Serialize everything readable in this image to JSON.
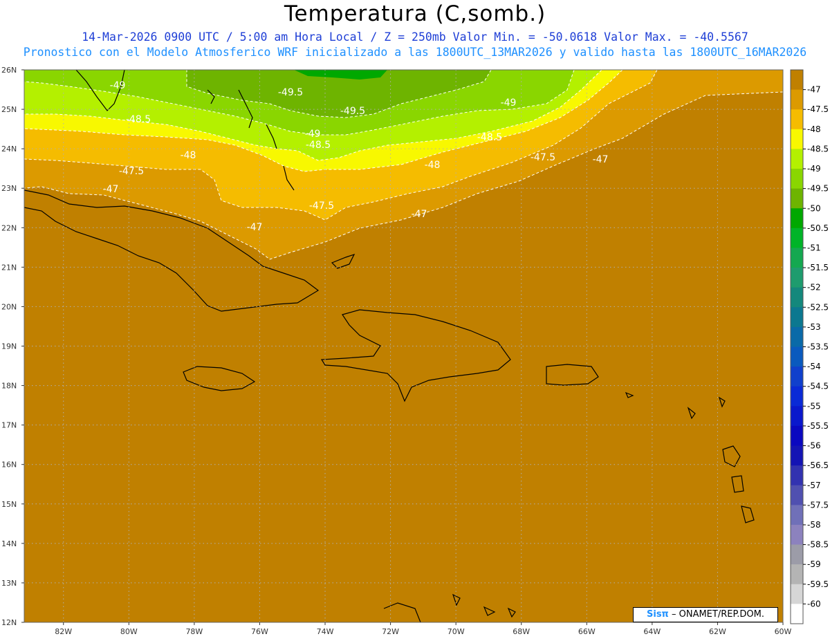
{
  "header": {
    "title": "Temperatura (C,somb.)",
    "line1": "14-Mar-2026  0900 UTC / 5:00 am Hora Local / Z = 250mb  Valor Min. = -50.0618  Valor Max. = -40.5567",
    "line2": "Pronostico con el Modelo Atmosferico WRF inicializado a las 1800UTC_13MAR2026 y valido hasta las  1800UTC_16MAR2026"
  },
  "map": {
    "lat_labels": [
      "26N",
      "25N",
      "24N",
      "23N",
      "22N",
      "21N",
      "20N",
      "19N",
      "18N",
      "17N",
      "16N",
      "15N",
      "14N",
      "13N",
      "12N"
    ],
    "lon_labels": [
      "82W",
      "80W",
      "78W",
      "76W",
      "74W",
      "72W",
      "70W",
      "68W",
      "66W",
      "64W",
      "62W",
      "60W"
    ],
    "lat_range": [
      12,
      26
    ],
    "lon_range": [
      -83.2,
      -60
    ],
    "contour_labels": [
      "-49",
      "-49.5",
      "-49.5",
      "-49",
      "-48.5",
      "-49",
      "-48.5",
      "-48.5",
      "-48",
      "-48",
      "-47.5",
      "-47.5",
      "-47.5",
      "-47",
      "-47",
      "-47",
      "-47"
    ]
  },
  "colorbar": {
    "labels": [
      "-47",
      "-47.5",
      "-48",
      "-48.5",
      "-49",
      "-49.5",
      "-50",
      "-50.5",
      "-51",
      "-51.5",
      "-52",
      "-52.5",
      "-53",
      "-53.5",
      "-54",
      "-54.5",
      "-55",
      "-55.5",
      "-56",
      "-56.5",
      "-57",
      "-57.5",
      "-58",
      "-58.5",
      "-59",
      "-59.5",
      "-60"
    ],
    "colors": [
      "#c08000",
      "#dc9a00",
      "#f5bc00",
      "#f8f800",
      "#b4f000",
      "#8ad600",
      "#6eb400",
      "#00a800",
      "#00b428",
      "#14a850",
      "#1e9c6e",
      "#14887c",
      "#0c7890",
      "#0a6aa8",
      "#0a5abe",
      "#1040cc",
      "#0a2ad6",
      "#0a18cc",
      "#0a08c0",
      "#1414b4",
      "#3232b0",
      "#5050b0",
      "#7070b8",
      "#8c82be",
      "#9c9ca8",
      "#b4b4b4",
      "#d6d6d6",
      "#ffffff"
    ]
  },
  "logo": {
    "brand": "Sisπ",
    "text": " – ONAMET/REP.DOM."
  }
}
